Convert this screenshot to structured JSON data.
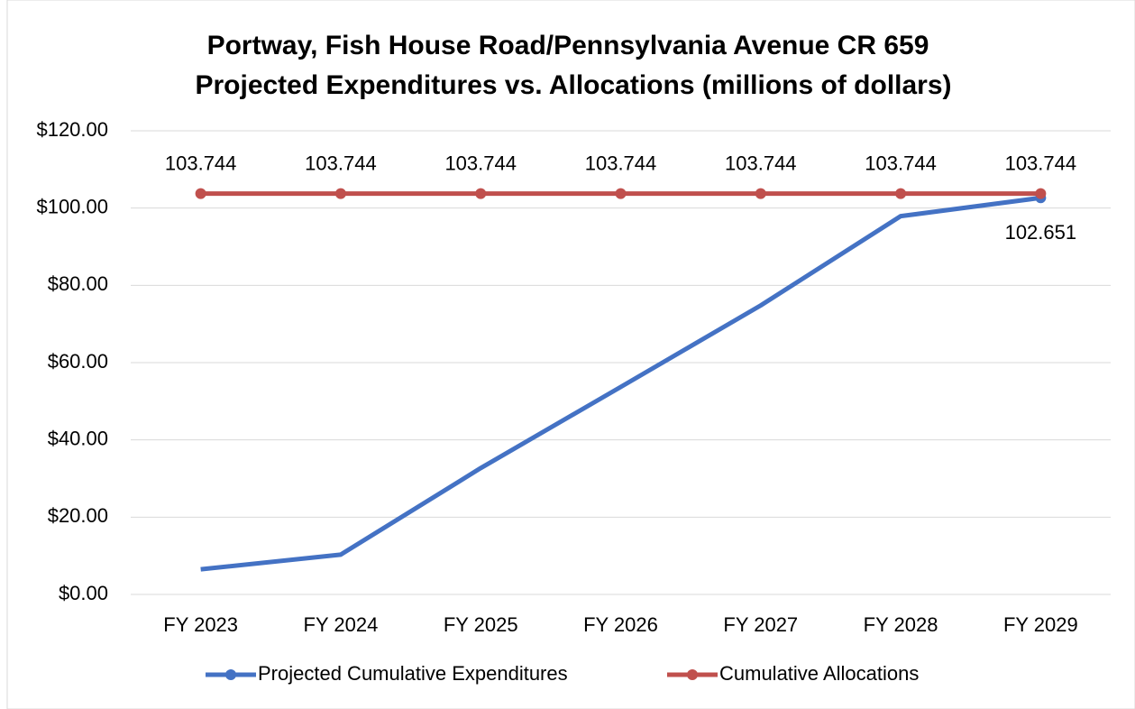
{
  "chart_data": {
    "type": "line",
    "title": "Portway, Fish House Road/Pennsylvania Avenue CR 659",
    "subtitle": "Projected Expenditures vs. Allocations (millions of dollars)",
    "categories": [
      "FY 2023",
      "FY 2024",
      "FY 2025",
      "FY 2026",
      "FY 2027",
      "FY 2028",
      "FY 2029"
    ],
    "series": [
      {
        "name": "Projected Cumulative Expenditures",
        "color": "#4472c4",
        "values": [
          6.5,
          10.3,
          32.7,
          53.7,
          74.8,
          97.9,
          102.651
        ],
        "value_labels": [
          null,
          null,
          null,
          null,
          null,
          null,
          "102.651"
        ]
      },
      {
        "name": "Cumulative Allocations",
        "color": "#c0504d",
        "values": [
          103.744,
          103.744,
          103.744,
          103.744,
          103.744,
          103.744,
          103.744
        ],
        "value_labels": [
          "103.744",
          "103.744",
          "103.744",
          "103.744",
          "103.744",
          "103.744",
          "103.744"
        ]
      }
    ],
    "ylim": [
      0,
      120
    ],
    "yticks": [
      {
        "value": 0,
        "label": "$0.00"
      },
      {
        "value": 20,
        "label": "$20.00"
      },
      {
        "value": 40,
        "label": "$40.00"
      },
      {
        "value": 60,
        "label": "$60.00"
      },
      {
        "value": 80,
        "label": "$80.00"
      },
      {
        "value": 100,
        "label": "$100.00"
      },
      {
        "value": 120,
        "label": "$120.00"
      }
    ],
    "grid": true,
    "legend": "bottom"
  }
}
